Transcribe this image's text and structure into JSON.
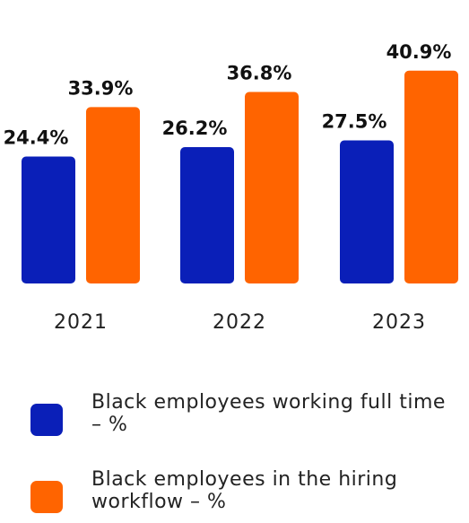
{
  "chart_data": {
    "type": "bar",
    "categories": [
      "2021",
      "2022",
      "2023"
    ],
    "series": [
      {
        "name": "Black employees working full time – %",
        "values": [
          24.4,
          26.2,
          27.5
        ],
        "labels": [
          "24.4%",
          "26.2%",
          "27.5%"
        ],
        "color": "#0A1FB8"
      },
      {
        "name": "Black employees in the hiring workflow – %",
        "values": [
          33.9,
          36.8,
          40.9
        ],
        "labels": [
          "33.9%",
          "36.8%",
          "40.9%"
        ],
        "color": "#FF6400"
      }
    ],
    "title": "",
    "xlabel": "",
    "ylabel": "",
    "ylim": [
      0,
      45
    ],
    "grid": false,
    "legend_position": "bottom"
  },
  "legend": [
    {
      "label": "Black employees working full time – %",
      "color": "#0A1FB8"
    },
    {
      "label": "Black employees in the hiring workflow – %",
      "color": "#FF6400"
    }
  ]
}
